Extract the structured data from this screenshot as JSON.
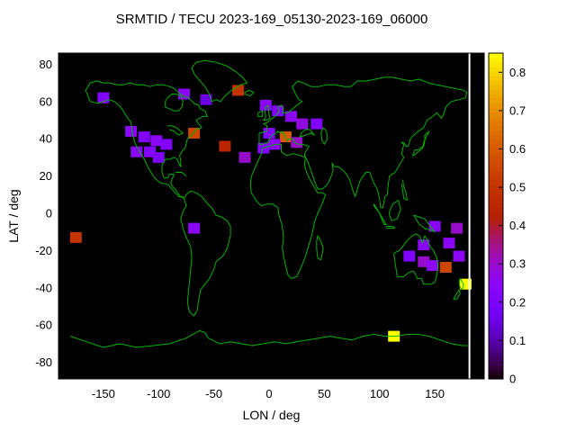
{
  "chart_data": {
    "type": "heatmap",
    "title": "SRMTID / TECU 2023-169_05130-2023-169_06000",
    "xlabel": "LON / deg",
    "ylabel": "LAT / deg",
    "xlim": [
      -180,
      180
    ],
    "ylim": [
      -90,
      90
    ],
    "xticks": [
      -150,
      -100,
      -50,
      0,
      50,
      100,
      150
    ],
    "yticks": [
      80,
      60,
      40,
      20,
      0,
      -20,
      -40,
      -60,
      -80
    ],
    "background": "#000000",
    "coastline_color": "#00b400",
    "frame_color": "#000000",
    "palette": "gnuplot rgbformulae 7,5,15 (black-purple-red-yellow)",
    "colorbar": {
      "min": 0,
      "max": 0.85,
      "ticks": [
        0,
        0.1,
        0.2,
        0.3,
        0.4,
        0.5,
        0.6,
        0.7,
        0.8
      ],
      "tick_labels": [
        "0",
        "0.1",
        "0.2",
        "0.3",
        "0.4",
        "0.5",
        "0.6",
        "0.7",
        "0.8"
      ]
    },
    "cells": [
      {
        "lon": -150,
        "lat": 62,
        "value": 0.22
      },
      {
        "lon": -77,
        "lat": 64,
        "value": 0.25
      },
      {
        "lon": -57,
        "lat": 61,
        "value": 0.15
      },
      {
        "lon": -28,
        "lat": 66,
        "value": 0.5
      },
      {
        "lon": -3,
        "lat": 58,
        "value": 0.25
      },
      {
        "lon": 8,
        "lat": 55,
        "value": 0.22
      },
      {
        "lon": 20,
        "lat": 52,
        "value": 0.25
      },
      {
        "lon": 30,
        "lat": 48,
        "value": 0.28
      },
      {
        "lon": 43,
        "lat": 48,
        "value": 0.22
      },
      {
        "lon": -125,
        "lat": 44,
        "value": 0.25
      },
      {
        "lon": -113,
        "lat": 41,
        "value": 0.22
      },
      {
        "lon": -102,
        "lat": 39,
        "value": 0.25
      },
      {
        "lon": -93,
        "lat": 37,
        "value": 0.22
      },
      {
        "lon": -68,
        "lat": 43,
        "value": 0.55
      },
      {
        "lon": -120,
        "lat": 33,
        "value": 0.25
      },
      {
        "lon": -108,
        "lat": 33,
        "value": 0.22
      },
      {
        "lon": -100,
        "lat": 30,
        "value": 0.2
      },
      {
        "lon": -40,
        "lat": 36,
        "value": 0.45
      },
      {
        "lon": -22,
        "lat": 30,
        "value": 0.3
      },
      {
        "lon": 15,
        "lat": 41,
        "value": 0.6
      },
      {
        "lon": 25,
        "lat": 38,
        "value": 0.3
      },
      {
        "lon": 5,
        "lat": 37,
        "value": 0.25
      },
      {
        "lon": -5,
        "lat": 35,
        "value": 0.22
      },
      {
        "lon": 0,
        "lat": 43,
        "value": 0.22
      },
      {
        "lon": -175,
        "lat": -13,
        "value": 0.5
      },
      {
        "lon": -68,
        "lat": -8,
        "value": 0.25
      },
      {
        "lon": 150,
        "lat": -7,
        "value": 0.25
      },
      {
        "lon": 170,
        "lat": -8,
        "value": 0.3
      },
      {
        "lon": 140,
        "lat": -17,
        "value": 0.25
      },
      {
        "lon": 163,
        "lat": -16,
        "value": 0.25
      },
      {
        "lon": 127,
        "lat": -23,
        "value": 0.22
      },
      {
        "lon": 140,
        "lat": -26,
        "value": 0.3
      },
      {
        "lon": 148,
        "lat": -28,
        "value": 0.25
      },
      {
        "lon": 160,
        "lat": -29,
        "value": 0.55
      },
      {
        "lon": 172,
        "lat": -23,
        "value": 0.25
      },
      {
        "lon": 178,
        "lat": -38,
        "value": 0.85
      },
      {
        "lon": 113,
        "lat": -66,
        "value": 0.85
      }
    ]
  }
}
